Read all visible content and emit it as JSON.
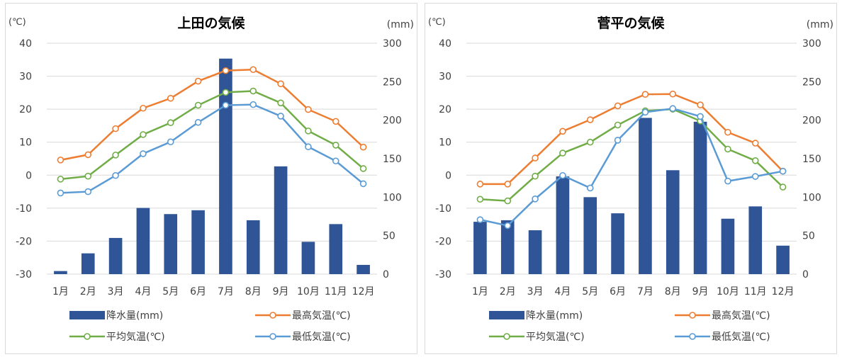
{
  "chart_data": [
    {
      "type": "bar+line",
      "title": "上田の気候",
      "left_unit": "(℃)",
      "right_unit": "(mm)",
      "categories": [
        "1月",
        "2月",
        "3月",
        "4月",
        "5月",
        "6月",
        "7月",
        "8月",
        "9月",
        "10月",
        "11月",
        "12月"
      ],
      "left_ticks": [
        "40",
        "30",
        "20",
        "10",
        "0",
        "-10",
        "-20",
        "-30"
      ],
      "right_ticks": [
        "300",
        "250",
        "200",
        "150",
        "100",
        "50",
        "0"
      ],
      "ylim_left": [
        -30,
        40
      ],
      "ylim_right": [
        0,
        300
      ],
      "grid": true,
      "legend_position": "bottom",
      "bar_series": {
        "name": "降水量(mm)",
        "color": "#2f5597",
        "values": [
          4,
          27,
          47,
          86,
          78,
          83,
          280,
          70,
          140,
          42,
          65,
          12
        ]
      },
      "line_series": [
        {
          "name": "最高気温(℃)",
          "color": "#ed7d31",
          "values": [
            4.6,
            6.2,
            14.1,
            20.3,
            23.3,
            28.5,
            31.7,
            32.0,
            27.7,
            19.9,
            16.3,
            8.5
          ]
        },
        {
          "name": "平均気温(℃)",
          "color": "#70ad47",
          "values": [
            -1.2,
            -0.3,
            6.1,
            12.3,
            15.9,
            21.2,
            25.1,
            25.5,
            21.9,
            13.4,
            9.1,
            2.0
          ]
        },
        {
          "name": "最低気温(℃)",
          "color": "#5b9bd5",
          "values": [
            -5.4,
            -5.0,
            -0.1,
            6.5,
            10.1,
            16.0,
            21.2,
            21.4,
            17.9,
            8.6,
            4.3,
            -2.6
          ]
        }
      ],
      "legend_order": [
        "降水量(mm)",
        "最高気温(℃)",
        "平均気温(℃)",
        "最低気温(℃)"
      ]
    },
    {
      "type": "bar+line",
      "title": "菅平の気候",
      "left_unit": "(℃)",
      "right_unit": "(mm)",
      "categories": [
        "1月",
        "2月",
        "3月",
        "4月",
        "5月",
        "6月",
        "7月",
        "8月",
        "9月",
        "10月",
        "11月",
        "12月"
      ],
      "left_ticks": [
        "40",
        "30",
        "20",
        "10",
        "0",
        "-10",
        "-20",
        "-30"
      ],
      "right_ticks": [
        "300",
        "250",
        "200",
        "150",
        "100",
        "50",
        "0"
      ],
      "ylim_left": [
        -30,
        40
      ],
      "ylim_right": [
        0,
        300
      ],
      "grid": true,
      "legend_position": "bottom",
      "bar_series": {
        "name": "降水量(mm)",
        "color": "#2f5597",
        "values": [
          68,
          70,
          57,
          127,
          100,
          79,
          203,
          135,
          198,
          72,
          88,
          37
        ]
      },
      "line_series": [
        {
          "name": "最高気温(℃)",
          "color": "#ed7d31",
          "values": [
            -2.7,
            -2.7,
            5.2,
            13.3,
            16.8,
            21.0,
            24.5,
            24.6,
            21.3,
            13.0,
            9.7,
            1.2
          ]
        },
        {
          "name": "平均気温(℃)",
          "color": "#70ad47",
          "values": [
            -7.3,
            -7.8,
            -0.3,
            6.7,
            10.0,
            15.2,
            19.5,
            20.0,
            16.4,
            7.9,
            4.4,
            -3.6
          ]
        },
        {
          "name": "最低気温(℃)",
          "color": "#5b9bd5",
          "values": [
            -13.5,
            -15.3,
            -7.2,
            -0.1,
            -3.9,
            10.6,
            19.1,
            20.2,
            17.8,
            -1.8,
            -0.4,
            1.2
          ]
        }
      ],
      "legend_order": [
        "降水量(mm)",
        "最高気温(℃)",
        "平均気温(℃)",
        "最低気温(℃)"
      ]
    }
  ]
}
